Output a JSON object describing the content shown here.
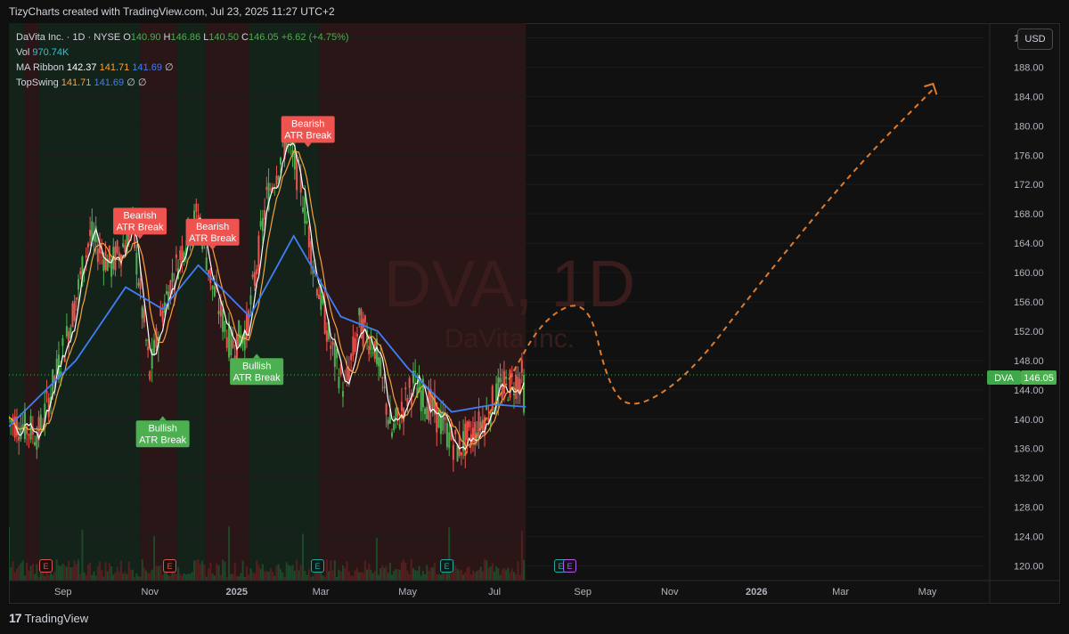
{
  "header": {
    "credit": "TizyCharts created with TradingView.com, Jul 23, 2025 11:27 UTC+2"
  },
  "currency_button": "USD",
  "legend": {
    "symbol_line": "DaVita Inc. · 1D · NYSE",
    "o_label": "O",
    "o": "140.90",
    "h_label": "H",
    "h": "146.86",
    "l_label": "L",
    "l": "140.50",
    "c_label": "C",
    "c": "146.05",
    "change": "+6.62 (+4.75%)",
    "vol_label": "Vol",
    "vol": "970.74K",
    "ma_label": "MA Ribbon",
    "ma1": "142.37",
    "ma2": "141.71",
    "ma3": "141.69",
    "ma4": "∅",
    "ts_label": "TopSwing",
    "ts1": "141.71",
    "ts2": "141.69",
    "ts3": "∅",
    "ts4": "∅"
  },
  "watermark": {
    "ticker": "DVA, 1D",
    "name": "DaVita Inc."
  },
  "price_tag": {
    "symbol": "DVA",
    "price": "146.05"
  },
  "earnings_badges": [
    {
      "label": "E",
      "style": "red"
    },
    {
      "label": "E",
      "style": "red"
    },
    {
      "label": "E",
      "style": "teal"
    },
    {
      "label": "E",
      "style": "teal"
    },
    {
      "label": "E",
      "style": "teal"
    },
    {
      "label": "E",
      "style": "purple"
    }
  ],
  "footer": {
    "brand": "TradingView",
    "logo_glyph": "17"
  },
  "colors": {
    "up": "#4caf50",
    "down": "#ef5350",
    "ma_fast": "#ffffff",
    "ma_mid": "#f7a23a",
    "ma_slow": "#3f7ef5",
    "forecast": "#e07b2a",
    "bull_bg": "#14231a",
    "bear_bg": "#2a1616"
  },
  "chart_data": {
    "type": "candlestick",
    "symbol": "DVA",
    "timeframe": "1D",
    "y_axis": {
      "min": 118,
      "max": 194,
      "ticks": [
        120,
        124,
        128,
        132,
        136,
        140,
        144,
        148,
        152,
        156,
        160,
        164,
        168,
        172,
        176,
        180,
        184,
        188,
        192
      ]
    },
    "x_axis": {
      "labels": [
        {
          "text": "Sep",
          "date": "2024-09-01"
        },
        {
          "text": "Nov",
          "date": "2024-11-01"
        },
        {
          "text": "2025",
          "date": "2025-01-01"
        },
        {
          "text": "Mar",
          "date": "2025-03-01"
        },
        {
          "text": "May",
          "date": "2025-05-01"
        },
        {
          "text": "Jul",
          "date": "2025-07-01"
        },
        {
          "text": "Sep",
          "date": "2025-09-01"
        },
        {
          "text": "Nov",
          "date": "2025-11-01"
        },
        {
          "text": "2026",
          "date": "2026-01-01"
        },
        {
          "text": "Mar",
          "date": "2026-03-01"
        },
        {
          "text": "May",
          "date": "2026-05-01"
        }
      ],
      "range": [
        "2024-07-25",
        "2026-06-10"
      ]
    },
    "price_path": [
      {
        "date": "2024-07-25",
        "close": 140
      },
      {
        "date": "2024-08-15",
        "close": 138
      },
      {
        "date": "2024-09-05",
        "close": 152
      },
      {
        "date": "2024-09-20",
        "close": 165
      },
      {
        "date": "2024-10-05",
        "close": 161
      },
      {
        "date": "2024-10-20",
        "close": 166
      },
      {
        "date": "2024-11-01",
        "close": 146
      },
      {
        "date": "2024-11-10",
        "close": 155
      },
      {
        "date": "2024-11-25",
        "close": 164
      },
      {
        "date": "2024-12-05",
        "close": 168
      },
      {
        "date": "2024-12-15",
        "close": 158
      },
      {
        "date": "2024-12-28",
        "close": 150
      },
      {
        "date": "2025-01-08",
        "close": 152
      },
      {
        "date": "2025-01-22",
        "close": 170
      },
      {
        "date": "2025-02-05",
        "close": 178
      },
      {
        "date": "2025-02-15",
        "close": 172
      },
      {
        "date": "2025-02-25",
        "close": 160
      },
      {
        "date": "2025-03-08",
        "close": 150
      },
      {
        "date": "2025-03-18",
        "close": 144
      },
      {
        "date": "2025-03-28",
        "close": 153
      },
      {
        "date": "2025-04-08",
        "close": 150
      },
      {
        "date": "2025-04-20",
        "close": 138
      },
      {
        "date": "2025-05-05",
        "close": 145
      },
      {
        "date": "2025-05-20",
        "close": 141
      },
      {
        "date": "2025-06-05",
        "close": 136
      },
      {
        "date": "2025-06-20",
        "close": 139
      },
      {
        "date": "2025-07-05",
        "close": 144
      },
      {
        "date": "2025-07-23",
        "close": 146.05
      }
    ],
    "ma_slow": [
      {
        "date": "2024-07-25",
        "value": 139
      },
      {
        "date": "2024-09-10",
        "value": 148
      },
      {
        "date": "2024-10-15",
        "value": 158
      },
      {
        "date": "2024-11-10",
        "value": 155
      },
      {
        "date": "2024-12-05",
        "value": 161
      },
      {
        "date": "2025-01-10",
        "value": 154
      },
      {
        "date": "2025-02-10",
        "value": 165
      },
      {
        "date": "2025-03-15",
        "value": 154
      },
      {
        "date": "2025-04-10",
        "value": 152
      },
      {
        "date": "2025-05-01",
        "value": 147
      },
      {
        "date": "2025-06-01",
        "value": 141
      },
      {
        "date": "2025-07-01",
        "value": 142
      },
      {
        "date": "2025-07-23",
        "value": 141.69
      }
    ],
    "regimes": [
      {
        "start": "2024-07-25",
        "end": "2024-08-05",
        "state": "bull"
      },
      {
        "start": "2024-08-05",
        "end": "2024-08-15",
        "state": "bear"
      },
      {
        "start": "2024-08-15",
        "end": "2024-10-25",
        "state": "bull"
      },
      {
        "start": "2024-10-25",
        "end": "2024-11-20",
        "state": "bear"
      },
      {
        "start": "2024-11-20",
        "end": "2024-12-10",
        "state": "bull"
      },
      {
        "start": "2024-12-10",
        "end": "2025-01-10",
        "state": "bear"
      },
      {
        "start": "2025-01-10",
        "end": "2025-02-28",
        "state": "bull"
      },
      {
        "start": "2025-02-28",
        "end": "2025-07-23",
        "state": "bear"
      }
    ],
    "annotations": [
      {
        "type": "bearish",
        "line1": "Bearish",
        "line2": "ATR Break",
        "date": "2024-10-25",
        "price": 167
      },
      {
        "type": "bearish",
        "line1": "Bearish",
        "line2": "ATR Break",
        "date": "2024-12-15",
        "price": 165.5
      },
      {
        "type": "bearish",
        "line1": "Bearish",
        "line2": "ATR Break",
        "date": "2025-02-20",
        "price": 179.5
      },
      {
        "type": "bullish",
        "line1": "Bullish",
        "line2": "ATR Break",
        "date": "2024-11-10",
        "price": 138
      },
      {
        "type": "bullish",
        "line1": "Bullish",
        "line2": "ATR Break",
        "date": "2025-01-15",
        "price": 146.5
      }
    ],
    "forecast_path": [
      {
        "date": "2025-06-10",
        "value": 135
      },
      {
        "date": "2025-07-10",
        "value": 145
      },
      {
        "date": "2025-08-05",
        "value": 154
      },
      {
        "date": "2025-09-05",
        "value": 156.5
      },
      {
        "date": "2025-09-18",
        "value": 145
      },
      {
        "date": "2025-10-05",
        "value": 141
      },
      {
        "date": "2025-11-15",
        "value": 146
      },
      {
        "date": "2026-01-01",
        "value": 158
      },
      {
        "date": "2026-03-10",
        "value": 174
      },
      {
        "date": "2026-05-05",
        "value": 185
      }
    ],
    "current_price": 146.05,
    "volume_max": 1
  }
}
